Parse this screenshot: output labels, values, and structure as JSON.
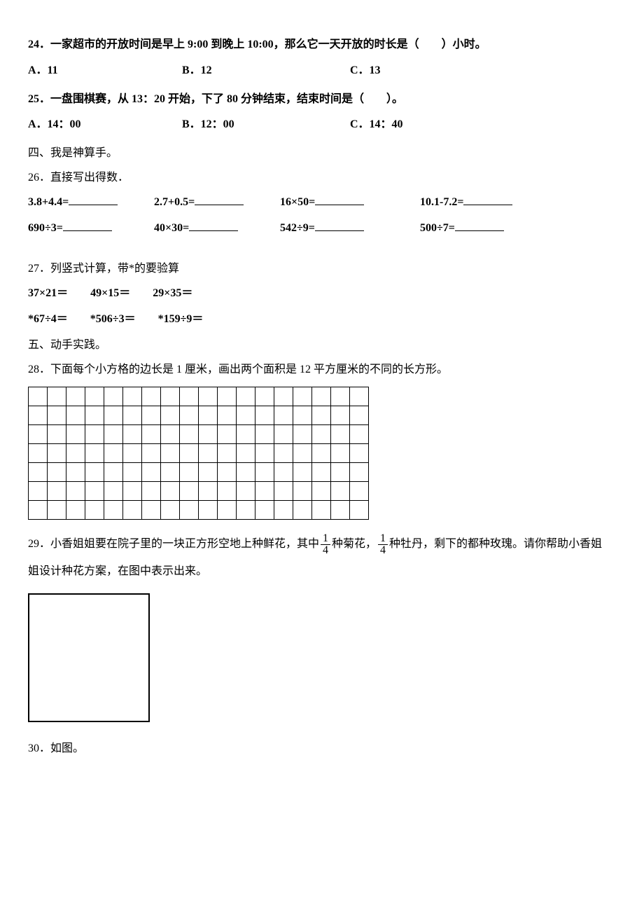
{
  "q24": {
    "text": "24．一家超市的开放时间是早上 9:00 到晚上 10:00，那么它一天开放的时长是（　　）小时。",
    "option_a": "A．11",
    "option_b": "B．12",
    "option_c": "C．13"
  },
  "q25": {
    "text": "25．一盘围棋赛，从 13：20 开始，下了 80 分钟结束，结束时间是（　　）。",
    "option_a": "A．14：00",
    "option_b": "B．12：00",
    "option_c": "C．14：40"
  },
  "section4": "四、我是神算手。",
  "q26": {
    "text": "26．直接写出得数．",
    "row1": {
      "c1": "3.8+4.4=",
      "c2": "2.7+0.5=",
      "c3": "16×50=",
      "c4": "10.1-7.2="
    },
    "row2": {
      "c1": "690÷3=",
      "c2": "40×30=",
      "c3": "542÷9=",
      "c4": "500÷7="
    }
  },
  "q27": {
    "text": "27．列竖式计算，带*的要验算",
    "row1": {
      "c1": "37×21＝",
      "c2": "49×15＝",
      "c3": "29×35＝"
    },
    "row2": {
      "c1": "*67÷4＝",
      "c2": "*506÷3＝",
      "c3": "*159÷9＝"
    }
  },
  "section5": "五、动手实践。",
  "q28": {
    "text": "28．下面每个小方格的边长是 1 厘米，画出两个面积是 12 平方厘米的不同的长方形。",
    "grid": {
      "rows": 7,
      "cols": 18
    }
  },
  "q29": {
    "prefix": "29．小香姐姐要在院子里的一块正方形空地上种鲜花，其中",
    "frac1_num": "1",
    "frac1_den": "4",
    "mid1": "种菊花，",
    "frac2_num": "1",
    "frac2_den": "4",
    "mid2": "种牡丹，剩下的都种玫瑰。请你帮助小香姐",
    "suffix": "姐设计种花方案，在图中表示出来。"
  },
  "q30": {
    "text": "30．如图。"
  }
}
